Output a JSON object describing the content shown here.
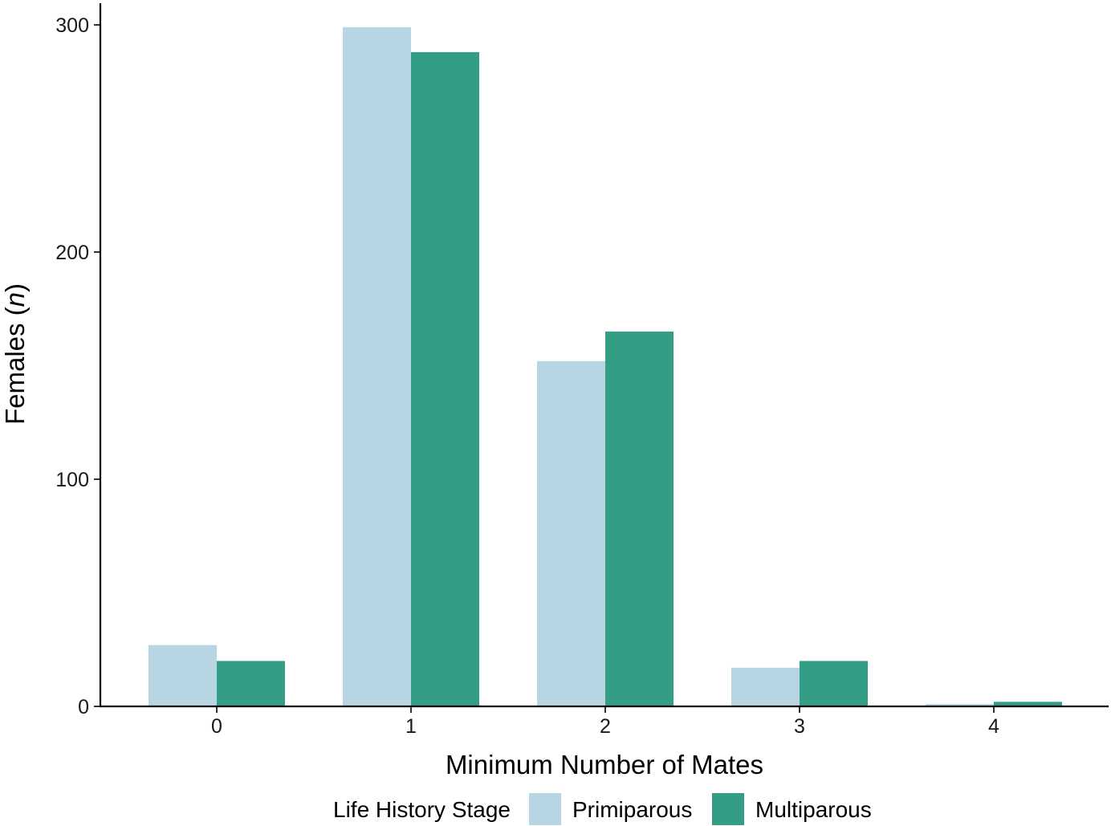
{
  "chart_data": {
    "type": "bar",
    "xlabel": "Minimum Number of Mates",
    "ylabel": "Females",
    "ylabel_italic": "n",
    "categories": [
      "0",
      "1",
      "2",
      "3",
      "4"
    ],
    "series": [
      {
        "name": "Primiparous",
        "color": "#b8d5e4",
        "values": [
          27,
          299,
          152,
          17,
          1
        ]
      },
      {
        "name": "Multiparous",
        "color": "#349d86",
        "values": [
          20,
          288,
          165,
          20,
          2
        ]
      }
    ],
    "ylim": [
      0,
      300
    ],
    "yticks": [
      0,
      100,
      200,
      300
    ],
    "legend": {
      "title": "Life History Stage",
      "position": "bottom"
    },
    "grid": false
  }
}
